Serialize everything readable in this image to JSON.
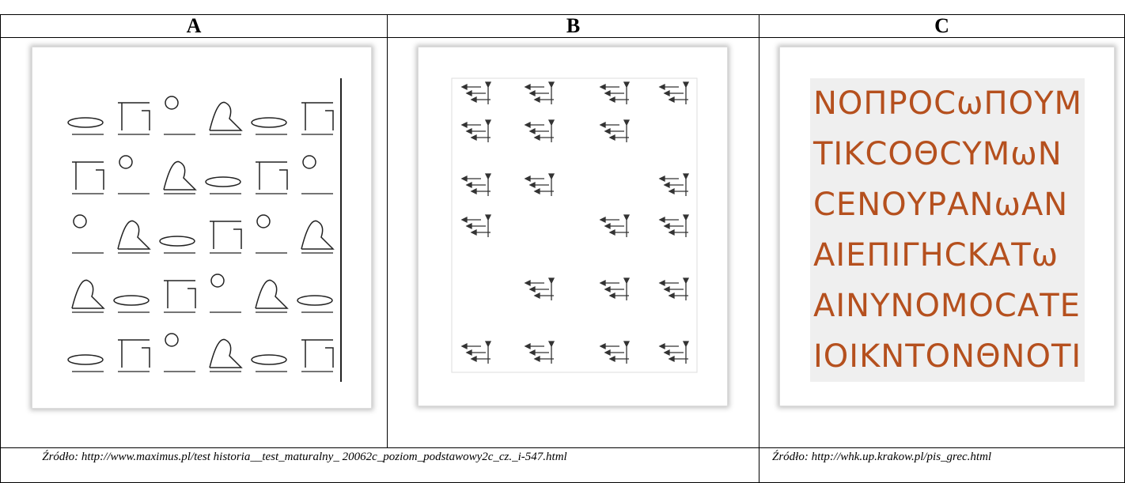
{
  "table": {
    "headers": [
      "A",
      "B",
      "C"
    ],
    "sources": [
      "Źródło: http://www.maximus.pl/test historia__test_maturalny_ 20062c_poziom_podstawowy2c_cz._i-547.html",
      "Źródło: http://whk.up.krakow.pl/pis_grec.html"
    ]
  },
  "images": {
    "greek_lines": [
      "ΝΟΠΡΟϹωΠΟΥΜ",
      "ΤΙΚϹΟΘϹΥΜωΝ",
      "ϹΕΝΟΥΡΑΝωΑΝ",
      "ΑΙΕΠΙΓΗϹΚΑΤω",
      "ΑΙΝΥΝΟΜΟϹΑΤΕ",
      "ΙΟΙΚΝΤΟΝΘΝΟΤΙ"
    ]
  }
}
